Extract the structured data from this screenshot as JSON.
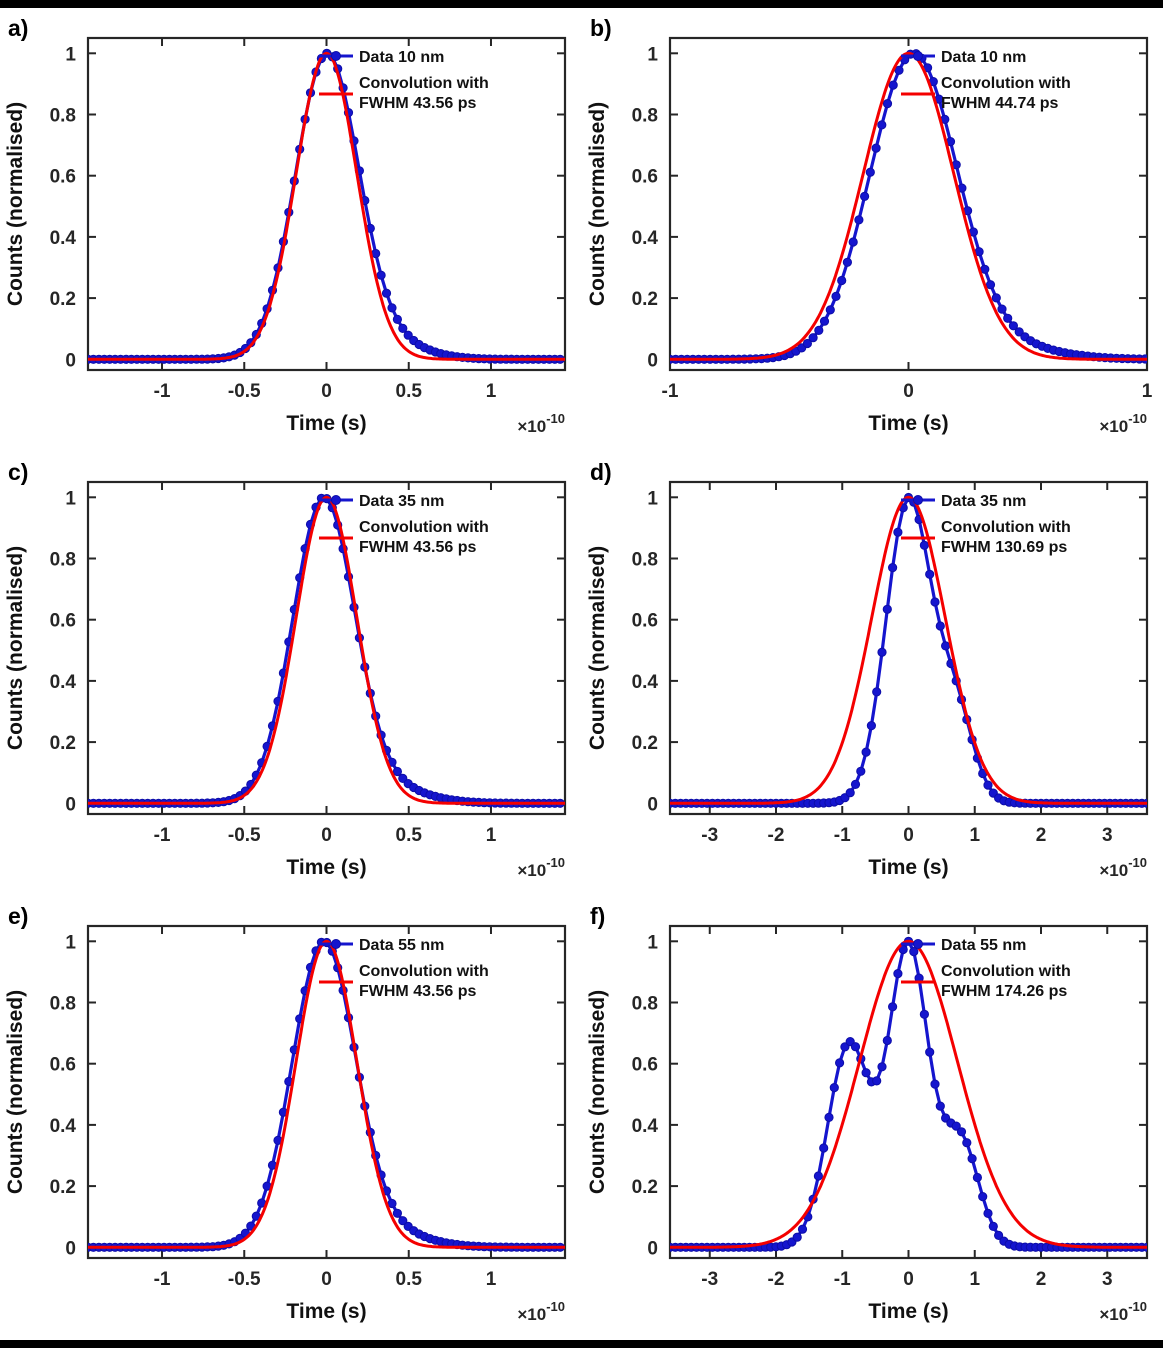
{
  "colors": {
    "data_blue": "#1515CE",
    "data_blue_edge": "#0D0DA8",
    "fit_red": "#F40000",
    "axis": "#262626"
  },
  "x_units": "1e-10 s",
  "chart_data": [
    {
      "id": "a",
      "panel_label": "a)",
      "type": "line",
      "xlabel": "Time (s)",
      "ylabel": "Counts (normalised)",
      "x_scale": {
        "multiplier": "×10",
        "exponent": "-10"
      },
      "xlim": [
        -1.45,
        1.45
      ],
      "ylim": [
        0,
        1
      ],
      "xticks": [
        -1,
        -0.5,
        0,
        0.5,
        1
      ],
      "xtick_labels": [
        "-1",
        "-0.5",
        "0",
        "0.5",
        "1"
      ],
      "yticks": [
        0,
        0.2,
        0.4,
        0.6,
        0.8,
        1
      ],
      "ytick_labels": [
        "0",
        "0.2",
        "0.4",
        "0.6",
        "0.8",
        "1"
      ],
      "fit_fwhm_ps": 43.56,
      "legend": [
        {
          "label": "Data 10 nm",
          "style": "marker-line",
          "color_key": "data_blue"
        },
        {
          "label": "Convolution with FWHM 43.56 ps",
          "lines": [
            "Convolution with",
            "FWHM 43.56 ps"
          ],
          "style": "line",
          "color_key": "fit_red"
        }
      ],
      "series": [
        {
          "name": "Data 10 nm",
          "style": "markers",
          "color_key": "data_blue",
          "sample_step": 0.033,
          "peak_model": [
            {
              "center": 0,
              "fwhm": 0.45,
              "amp": 1
            },
            {
              "center": 0.33,
              "fwhm": 0.55,
              "amp": 0.06
            }
          ]
        },
        {
          "name": "Convolution FWHM 43.56 ps",
          "style": "line",
          "color_key": "fit_red",
          "peak_model": [
            {
              "center": 0,
              "fwhm": 0.4356,
              "amp": 1
            }
          ]
        }
      ]
    },
    {
      "id": "b",
      "panel_label": "b)",
      "type": "line",
      "xlabel": "Time (s)",
      "ylabel": "Counts (normalised)",
      "x_scale": {
        "multiplier": "×10",
        "exponent": "-10"
      },
      "xlim": [
        -1,
        1
      ],
      "ylim": [
        0,
        1
      ],
      "xticks": [
        -1,
        0,
        1
      ],
      "xtick_labels": [
        "-1",
        "0",
        "1"
      ],
      "yticks": [
        0,
        0.2,
        0.4,
        0.6,
        0.8,
        1
      ],
      "ytick_labels": [
        "0",
        "0.2",
        "0.4",
        "0.6",
        "0.8",
        "1"
      ],
      "fit_fwhm_ps": 44.74,
      "legend": [
        {
          "label": "Data 10 nm",
          "style": "marker-line",
          "color_key": "data_blue"
        },
        {
          "label": "Convolution with FWHM 44.74 ps",
          "lines": [
            "Convolution with",
            "FWHM 44.74 ps"
          ],
          "style": "line",
          "color_key": "fit_red"
        }
      ],
      "series": [
        {
          "name": "Data 10 nm",
          "style": "markers",
          "color_key": "data_blue",
          "sample_step": 0.024,
          "peak_model": [
            {
              "center": 0.02,
              "fwhm": 0.43,
              "amp": 1
            },
            {
              "center": 0.4,
              "fwhm": 0.5,
              "amp": 0.04
            }
          ]
        },
        {
          "name": "Convolution FWHM 44.74 ps",
          "style": "line",
          "color_key": "fit_red",
          "peak_model": [
            {
              "center": 0,
              "fwhm": 0.4474,
              "amp": 1
            }
          ]
        }
      ]
    },
    {
      "id": "c",
      "panel_label": "c)",
      "type": "line",
      "xlabel": "Time (s)",
      "ylabel": "Counts (normalised)",
      "x_scale": {
        "multiplier": "×10",
        "exponent": "-10"
      },
      "xlim": [
        -1.45,
        1.45
      ],
      "ylim": [
        0,
        1
      ],
      "xticks": [
        -1,
        -0.5,
        0,
        0.5,
        1
      ],
      "xtick_labels": [
        "-1",
        "-0.5",
        "0",
        "0.5",
        "1"
      ],
      "yticks": [
        0,
        0.2,
        0.4,
        0.6,
        0.8,
        1
      ],
      "ytick_labels": [
        "0",
        "0.2",
        "0.4",
        "0.6",
        "0.8",
        "1"
      ],
      "fit_fwhm_ps": 43.56,
      "legend": [
        {
          "label": "Data 35 nm",
          "style": "marker-line",
          "color_key": "data_blue"
        },
        {
          "label": "Convolution with FWHM 43.56 ps",
          "lines": [
            "Convolution with",
            "FWHM 43.56 ps"
          ],
          "style": "line",
          "color_key": "fit_red"
        }
      ],
      "series": [
        {
          "name": "Data 35 nm",
          "style": "markers",
          "color_key": "data_blue",
          "sample_step": 0.033,
          "peak_model": [
            {
              "center": -0.02,
              "fwhm": 0.44,
              "amp": 1
            },
            {
              "center": 0.3,
              "fwhm": 0.6,
              "amp": 0.06
            }
          ]
        },
        {
          "name": "Convolution FWHM 43.56 ps",
          "style": "line",
          "color_key": "fit_red",
          "peak_model": [
            {
              "center": 0,
              "fwhm": 0.4356,
              "amp": 1
            }
          ]
        }
      ]
    },
    {
      "id": "d",
      "panel_label": "d)",
      "type": "line",
      "xlabel": "Time (s)",
      "ylabel": "Counts (normalised)",
      "x_scale": {
        "multiplier": "×10",
        "exponent": "-10"
      },
      "xlim": [
        -3.6,
        3.6
      ],
      "ylim": [
        0,
        1
      ],
      "xticks": [
        -3,
        -2,
        -1,
        0,
        1,
        2,
        3
      ],
      "xtick_labels": [
        "-3",
        "-2",
        "-1",
        "0",
        "1",
        "2",
        "3"
      ],
      "yticks": [
        0,
        0.2,
        0.4,
        0.6,
        0.8,
        1
      ],
      "ytick_labels": [
        "0",
        "0.2",
        "0.4",
        "0.6",
        "0.8",
        "1"
      ],
      "fit_fwhm_ps": 130.69,
      "legend": [
        {
          "label": "Data 35 nm",
          "style": "marker-line",
          "color_key": "data_blue"
        },
        {
          "label": "Convolution with FWHM 130.69 ps",
          "lines": [
            "Convolution with",
            "FWHM 130.69 ps"
          ],
          "style": "line",
          "color_key": "fit_red"
        }
      ],
      "series": [
        {
          "name": "Data 35 nm",
          "style": "markers",
          "color_key": "data_blue",
          "sample_step": 0.08,
          "peak_model": [
            {
              "center": 0,
              "fwhm": 0.8,
              "amp": 1
            },
            {
              "center": 0.7,
              "fwhm": 0.65,
              "amp": 0.3
            }
          ]
        },
        {
          "name": "Convolution FWHM 130.69 ps",
          "style": "line",
          "color_key": "fit_red",
          "peak_model": [
            {
              "center": 0,
              "fwhm": 1.3069,
              "amp": 1
            }
          ]
        }
      ]
    },
    {
      "id": "e",
      "panel_label": "e)",
      "type": "line",
      "xlabel": "Time (s)",
      "ylabel": "Counts (normalised)",
      "x_scale": {
        "multiplier": "×10",
        "exponent": "-10"
      },
      "xlim": [
        -1.45,
        1.45
      ],
      "ylim": [
        0,
        1
      ],
      "xticks": [
        -1,
        -0.5,
        0,
        0.5,
        1
      ],
      "xtick_labels": [
        "-1",
        "-0.5",
        "0",
        "0.5",
        "1"
      ],
      "yticks": [
        0,
        0.2,
        0.4,
        0.6,
        0.8,
        1
      ],
      "ytick_labels": [
        "0",
        "0.2",
        "0.4",
        "0.6",
        "0.8",
        "1"
      ],
      "fit_fwhm_ps": 43.56,
      "legend": [
        {
          "label": "Data 55 nm",
          "style": "marker-line",
          "color_key": "data_blue"
        },
        {
          "label": "Convolution with FWHM 43.56 ps",
          "lines": [
            "Convolution with",
            "FWHM 43.56 ps"
          ],
          "style": "line",
          "color_key": "fit_red"
        }
      ],
      "series": [
        {
          "name": "Data 55 nm",
          "style": "markers",
          "color_key": "data_blue",
          "sample_step": 0.033,
          "peak_model": [
            {
              "center": -0.02,
              "fwhm": 0.45,
              "amp": 1
            },
            {
              "center": 0.3,
              "fwhm": 0.6,
              "amp": 0.06
            }
          ]
        },
        {
          "name": "Convolution FWHM 43.56 ps",
          "style": "line",
          "color_key": "fit_red",
          "peak_model": [
            {
              "center": 0,
              "fwhm": 0.4356,
              "amp": 1
            }
          ]
        }
      ]
    },
    {
      "id": "f",
      "panel_label": "f)",
      "type": "line",
      "xlabel": "Time (s)",
      "ylabel": "Counts (normalised)",
      "x_scale": {
        "multiplier": "×10",
        "exponent": "-10"
      },
      "xlim": [
        -3.6,
        3.6
      ],
      "ylim": [
        0,
        1
      ],
      "xticks": [
        -3,
        -2,
        -1,
        0,
        1,
        2,
        3
      ],
      "xtick_labels": [
        "-3",
        "-2",
        "-1",
        "0",
        "1",
        "2",
        "3"
      ],
      "yticks": [
        0,
        0.2,
        0.4,
        0.6,
        0.8,
        1
      ],
      "ytick_labels": [
        "0",
        "0.2",
        "0.4",
        "0.6",
        "0.8",
        "1"
      ],
      "fit_fwhm_ps": 174.26,
      "legend": [
        {
          "label": "Data 55 nm",
          "style": "marker-line",
          "color_key": "data_blue"
        },
        {
          "label": "Convolution with FWHM 174.26 ps",
          "lines": [
            "Convolution with",
            "FWHM 174.26 ps"
          ],
          "style": "line",
          "color_key": "fit_red"
        }
      ],
      "series": [
        {
          "name": "Data 55 nm",
          "style": "markers",
          "color_key": "data_blue",
          "sample_step": 0.08,
          "peak_model": [
            {
              "center": -0.9,
              "fwhm": 0.75,
              "amp": 0.62
            },
            {
              "center": 0,
              "fwhm": 0.7,
              "amp": 0.92
            },
            {
              "center": 0.78,
              "fwhm": 0.65,
              "amp": 0.33
            }
          ]
        },
        {
          "name": "Convolution FWHM 174.26 ps",
          "style": "line",
          "color_key": "fit_red",
          "peak_model": [
            {
              "center": 0,
              "fwhm": 1.7426,
              "amp": 1
            }
          ]
        }
      ]
    }
  ]
}
